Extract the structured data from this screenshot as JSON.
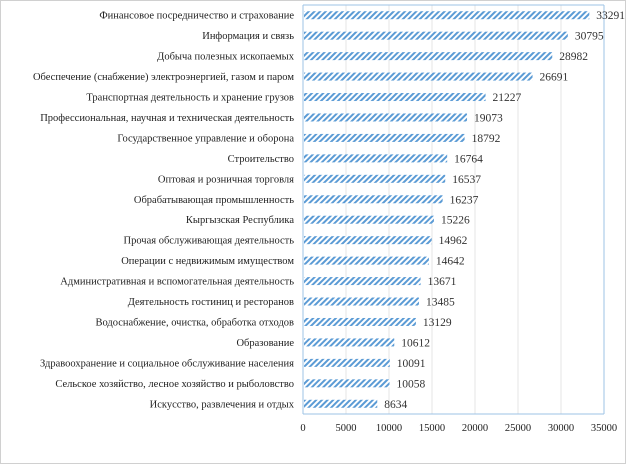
{
  "chart_data": {
    "type": "bar",
    "orientation": "horizontal",
    "title": "",
    "xlabel": "",
    "ylabel": "",
    "xlim": [
      0,
      35000
    ],
    "xticks": [
      0,
      5000,
      10000,
      15000,
      20000,
      25000,
      30000,
      35000
    ],
    "grid": true,
    "legend": "none",
    "bar_color": "#5b9bd5",
    "categories": [
      "Финансовое посредничество и страхование",
      "Информация и связь",
      "Добыча полезных ископаемых",
      "Обеспечение (снабжение) электроэнергией, газом и паром",
      "Транспортная деятельность и хранение грузов",
      "Профессиональная, научная и техническая деятельность",
      "Государственное управление и оборона",
      "Строительство",
      "Оптовая и розничная торговля",
      "Обрабатывающая промышленность",
      "Кыргызская Республика",
      "Прочая обслуживающая деятельность",
      "Операции с недвижимым имуществом",
      "Административная и вспомогательная деятельность",
      "Деятельность гостиниц и ресторанов",
      "Водоснабжение, очистка, обработка отходов",
      "Образование",
      "Здравоохранение и социальное обслуживание населения",
      "Сельское хозяйство, лесное хозяйство и рыболовство",
      "Искусство, развлечения и отдых"
    ],
    "values": [
      33291,
      30795,
      28982,
      26691,
      21227,
      19073,
      18792,
      16764,
      16537,
      16237,
      15226,
      14962,
      14642,
      13671,
      13485,
      13129,
      10612,
      10091,
      10058,
      8634
    ]
  }
}
